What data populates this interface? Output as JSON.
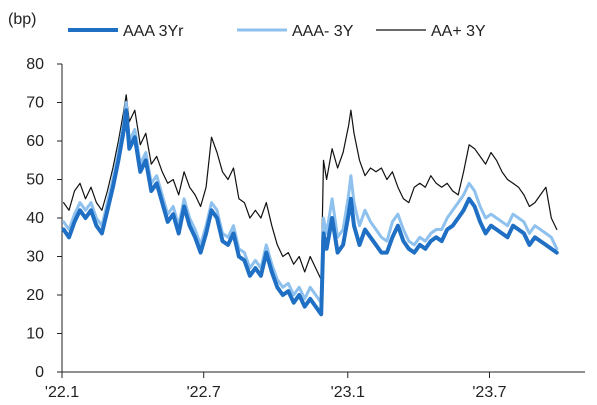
{
  "chart_data": {
    "type": "line",
    "unit_label": "(bp)",
    "xlabel": "",
    "ylabel": "",
    "ylim": [
      0,
      80
    ],
    "y_ticks": [
      0,
      10,
      20,
      30,
      40,
      50,
      60,
      70,
      80
    ],
    "x_ticks": [
      "'22.1",
      "'22.7",
      "'23.1",
      "'23.7"
    ],
    "grid": false,
    "legend_position": "top",
    "series": [
      {
        "name": "AAA 3Yr",
        "color": "#1f6fc5",
        "style": "thick",
        "points": [
          [
            "2022-01-03",
            37
          ],
          [
            "2022-01-10",
            35
          ],
          [
            "2022-01-17",
            39
          ],
          [
            "2022-01-24",
            42
          ],
          [
            "2022-01-31",
            40
          ],
          [
            "2022-02-07",
            42
          ],
          [
            "2022-02-14",
            38
          ],
          [
            "2022-02-21",
            36
          ],
          [
            "2022-02-28",
            42
          ],
          [
            "2022-03-07",
            48
          ],
          [
            "2022-03-14",
            55
          ],
          [
            "2022-03-21",
            63
          ],
          [
            "2022-03-24",
            68
          ],
          [
            "2022-03-28",
            58
          ],
          [
            "2022-04-04",
            61
          ],
          [
            "2022-04-11",
            52
          ],
          [
            "2022-04-18",
            55
          ],
          [
            "2022-04-25",
            47
          ],
          [
            "2022-05-02",
            49
          ],
          [
            "2022-05-09",
            44
          ],
          [
            "2022-05-16",
            39
          ],
          [
            "2022-05-23",
            41
          ],
          [
            "2022-05-30",
            36
          ],
          [
            "2022-06-06",
            43
          ],
          [
            "2022-06-13",
            38
          ],
          [
            "2022-06-20",
            35
          ],
          [
            "2022-06-27",
            31
          ],
          [
            "2022-07-04",
            36
          ],
          [
            "2022-07-11",
            42
          ],
          [
            "2022-07-18",
            40
          ],
          [
            "2022-07-25",
            34
          ],
          [
            "2022-08-01",
            33
          ],
          [
            "2022-08-08",
            36
          ],
          [
            "2022-08-15",
            30
          ],
          [
            "2022-08-22",
            29
          ],
          [
            "2022-08-29",
            25
          ],
          [
            "2022-09-05",
            27
          ],
          [
            "2022-09-12",
            25
          ],
          [
            "2022-09-19",
            31
          ],
          [
            "2022-09-26",
            26
          ],
          [
            "2022-10-03",
            22
          ],
          [
            "2022-10-10",
            20
          ],
          [
            "2022-10-17",
            21
          ],
          [
            "2022-10-24",
            18
          ],
          [
            "2022-10-31",
            20
          ],
          [
            "2022-11-07",
            17
          ],
          [
            "2022-11-14",
            19
          ],
          [
            "2022-11-21",
            17
          ],
          [
            "2022-11-28",
            15
          ],
          [
            "2022-12-01",
            36
          ],
          [
            "2022-12-05",
            32
          ],
          [
            "2022-12-12",
            40
          ],
          [
            "2022-12-19",
            31
          ],
          [
            "2022-12-26",
            33
          ],
          [
            "2023-01-02",
            41
          ],
          [
            "2023-01-05",
            45
          ],
          [
            "2023-01-09",
            38
          ],
          [
            "2023-01-16",
            33
          ],
          [
            "2023-01-23",
            37
          ],
          [
            "2023-01-30",
            35
          ],
          [
            "2023-02-06",
            33
          ],
          [
            "2023-02-13",
            31
          ],
          [
            "2023-02-20",
            31
          ],
          [
            "2023-02-27",
            35
          ],
          [
            "2023-03-06",
            38
          ],
          [
            "2023-03-13",
            34
          ],
          [
            "2023-03-20",
            32
          ],
          [
            "2023-03-27",
            31
          ],
          [
            "2023-04-03",
            33
          ],
          [
            "2023-04-10",
            32
          ],
          [
            "2023-04-17",
            34
          ],
          [
            "2023-04-24",
            35
          ],
          [
            "2023-05-01",
            34
          ],
          [
            "2023-05-08",
            37
          ],
          [
            "2023-05-15",
            38
          ],
          [
            "2023-05-22",
            40
          ],
          [
            "2023-05-29",
            42
          ],
          [
            "2023-06-05",
            45
          ],
          [
            "2023-06-12",
            43
          ],
          [
            "2023-06-19",
            39
          ],
          [
            "2023-06-26",
            36
          ],
          [
            "2023-07-03",
            38
          ],
          [
            "2023-07-10",
            37
          ],
          [
            "2023-07-17",
            36
          ],
          [
            "2023-07-24",
            35
          ],
          [
            "2023-07-31",
            38
          ],
          [
            "2023-08-07",
            37
          ],
          [
            "2023-08-14",
            36
          ],
          [
            "2023-08-21",
            33
          ],
          [
            "2023-08-28",
            35
          ],
          [
            "2023-09-04",
            34
          ],
          [
            "2023-09-11",
            33
          ],
          [
            "2023-09-18",
            32
          ],
          [
            "2023-09-25",
            31
          ]
        ]
      },
      {
        "name": "AAA- 3Y",
        "color": "#8fc1ee",
        "style": "medium",
        "points": [
          [
            "2022-01-03",
            39
          ],
          [
            "2022-01-10",
            37
          ],
          [
            "2022-01-17",
            41
          ],
          [
            "2022-01-24",
            44
          ],
          [
            "2022-01-31",
            42
          ],
          [
            "2022-02-07",
            44
          ],
          [
            "2022-02-14",
            40
          ],
          [
            "2022-02-21",
            38
          ],
          [
            "2022-02-28",
            44
          ],
          [
            "2022-03-07",
            50
          ],
          [
            "2022-03-14",
            57
          ],
          [
            "2022-03-21",
            65
          ],
          [
            "2022-03-24",
            70
          ],
          [
            "2022-03-28",
            60
          ],
          [
            "2022-04-04",
            63
          ],
          [
            "2022-04-11",
            54
          ],
          [
            "2022-04-18",
            57
          ],
          [
            "2022-04-25",
            49
          ],
          [
            "2022-05-02",
            51
          ],
          [
            "2022-05-09",
            46
          ],
          [
            "2022-05-16",
            41
          ],
          [
            "2022-05-23",
            43
          ],
          [
            "2022-05-30",
            38
          ],
          [
            "2022-06-06",
            45
          ],
          [
            "2022-06-13",
            40
          ],
          [
            "2022-06-20",
            37
          ],
          [
            "2022-06-27",
            33
          ],
          [
            "2022-07-04",
            38
          ],
          [
            "2022-07-11",
            44
          ],
          [
            "2022-07-18",
            42
          ],
          [
            "2022-07-25",
            36
          ],
          [
            "2022-08-01",
            35
          ],
          [
            "2022-08-08",
            38
          ],
          [
            "2022-08-15",
            32
          ],
          [
            "2022-08-22",
            31
          ],
          [
            "2022-08-29",
            27
          ],
          [
            "2022-09-05",
            29
          ],
          [
            "2022-09-12",
            27
          ],
          [
            "2022-09-19",
            33
          ],
          [
            "2022-09-26",
            28
          ],
          [
            "2022-10-03",
            24
          ],
          [
            "2022-10-10",
            22
          ],
          [
            "2022-10-17",
            23
          ],
          [
            "2022-10-24",
            20
          ],
          [
            "2022-10-31",
            22
          ],
          [
            "2022-11-07",
            19
          ],
          [
            "2022-11-14",
            22
          ],
          [
            "2022-11-21",
            20
          ],
          [
            "2022-11-28",
            18
          ],
          [
            "2022-12-01",
            40
          ],
          [
            "2022-12-05",
            36
          ],
          [
            "2022-12-12",
            45
          ],
          [
            "2022-12-19",
            35
          ],
          [
            "2022-12-26",
            37
          ],
          [
            "2023-01-02",
            46
          ],
          [
            "2023-01-05",
            51
          ],
          [
            "2023-01-09",
            44
          ],
          [
            "2023-01-16",
            38
          ],
          [
            "2023-01-23",
            42
          ],
          [
            "2023-01-30",
            39
          ],
          [
            "2023-02-06",
            37
          ],
          [
            "2023-02-13",
            35
          ],
          [
            "2023-02-20",
            34
          ],
          [
            "2023-02-27",
            39
          ],
          [
            "2023-03-06",
            41
          ],
          [
            "2023-03-13",
            37
          ],
          [
            "2023-03-20",
            34
          ],
          [
            "2023-03-27",
            33
          ],
          [
            "2023-04-03",
            35
          ],
          [
            "2023-04-10",
            34
          ],
          [
            "2023-04-17",
            36
          ],
          [
            "2023-04-24",
            37
          ],
          [
            "2023-05-01",
            37
          ],
          [
            "2023-05-08",
            40
          ],
          [
            "2023-05-15",
            42
          ],
          [
            "2023-05-22",
            44
          ],
          [
            "2023-05-29",
            46
          ],
          [
            "2023-06-05",
            49
          ],
          [
            "2023-06-12",
            47
          ],
          [
            "2023-06-19",
            43
          ],
          [
            "2023-06-26",
            40
          ],
          [
            "2023-07-03",
            41
          ],
          [
            "2023-07-10",
            40
          ],
          [
            "2023-07-17",
            39
          ],
          [
            "2023-07-24",
            38
          ],
          [
            "2023-07-31",
            41
          ],
          [
            "2023-08-07",
            40
          ],
          [
            "2023-08-14",
            39
          ],
          [
            "2023-08-21",
            36
          ],
          [
            "2023-08-28",
            38
          ],
          [
            "2023-09-04",
            37
          ],
          [
            "2023-09-11",
            36
          ],
          [
            "2023-09-18",
            35
          ],
          [
            "2023-09-25",
            32
          ]
        ]
      },
      {
        "name": "AA+ 3Y",
        "color": "#111111",
        "style": "thin",
        "points": [
          [
            "2022-01-03",
            44
          ],
          [
            "2022-01-10",
            42
          ],
          [
            "2022-01-17",
            47
          ],
          [
            "2022-01-24",
            49
          ],
          [
            "2022-01-31",
            45
          ],
          [
            "2022-02-07",
            48
          ],
          [
            "2022-02-14",
            44
          ],
          [
            "2022-02-21",
            42
          ],
          [
            "2022-02-28",
            47
          ],
          [
            "2022-03-07",
            53
          ],
          [
            "2022-03-14",
            60
          ],
          [
            "2022-03-21",
            68
          ],
          [
            "2022-03-24",
            72
          ],
          [
            "2022-03-28",
            65
          ],
          [
            "2022-04-04",
            68
          ],
          [
            "2022-04-11",
            59
          ],
          [
            "2022-04-18",
            62
          ],
          [
            "2022-04-25",
            54
          ],
          [
            "2022-05-02",
            56
          ],
          [
            "2022-05-09",
            52
          ],
          [
            "2022-05-16",
            49
          ],
          [
            "2022-05-23",
            50
          ],
          [
            "2022-05-30",
            46
          ],
          [
            "2022-06-06",
            52
          ],
          [
            "2022-06-13",
            48
          ],
          [
            "2022-06-20",
            46
          ],
          [
            "2022-06-27",
            43
          ],
          [
            "2022-07-04",
            48
          ],
          [
            "2022-07-11",
            61
          ],
          [
            "2022-07-18",
            57
          ],
          [
            "2022-07-25",
            52
          ],
          [
            "2022-08-01",
            50
          ],
          [
            "2022-08-08",
            53
          ],
          [
            "2022-08-15",
            45
          ],
          [
            "2022-08-22",
            44
          ],
          [
            "2022-08-29",
            40
          ],
          [
            "2022-09-05",
            42
          ],
          [
            "2022-09-12",
            40
          ],
          [
            "2022-09-19",
            44
          ],
          [
            "2022-09-26",
            38
          ],
          [
            "2022-10-03",
            33
          ],
          [
            "2022-10-10",
            30
          ],
          [
            "2022-10-17",
            31
          ],
          [
            "2022-10-24",
            28
          ],
          [
            "2022-10-31",
            30
          ],
          [
            "2022-11-07",
            26
          ],
          [
            "2022-11-14",
            30
          ],
          [
            "2022-11-21",
            27
          ],
          [
            "2022-11-28",
            24
          ],
          [
            "2022-12-01",
            55
          ],
          [
            "2022-12-05",
            50
          ],
          [
            "2022-12-12",
            58
          ],
          [
            "2022-12-19",
            53
          ],
          [
            "2022-12-26",
            57
          ],
          [
            "2023-01-02",
            64
          ],
          [
            "2023-01-05",
            68
          ],
          [
            "2023-01-09",
            62
          ],
          [
            "2023-01-16",
            55
          ],
          [
            "2023-01-23",
            51
          ],
          [
            "2023-01-30",
            53
          ],
          [
            "2023-02-06",
            52
          ],
          [
            "2023-02-13",
            53
          ],
          [
            "2023-02-20",
            50
          ],
          [
            "2023-02-27",
            52
          ],
          [
            "2023-03-06",
            48
          ],
          [
            "2023-03-13",
            45
          ],
          [
            "2023-03-20",
            44
          ],
          [
            "2023-03-27",
            48
          ],
          [
            "2023-04-03",
            49
          ],
          [
            "2023-04-10",
            48
          ],
          [
            "2023-04-17",
            51
          ],
          [
            "2023-04-24",
            49
          ],
          [
            "2023-05-01",
            48
          ],
          [
            "2023-05-08",
            49
          ],
          [
            "2023-05-15",
            47
          ],
          [
            "2023-05-22",
            46
          ],
          [
            "2023-05-29",
            52
          ],
          [
            "2023-06-05",
            59
          ],
          [
            "2023-06-12",
            58
          ],
          [
            "2023-06-19",
            56
          ],
          [
            "2023-06-26",
            54
          ],
          [
            "2023-07-03",
            57
          ],
          [
            "2023-07-10",
            55
          ],
          [
            "2023-07-17",
            52
          ],
          [
            "2023-07-24",
            50
          ],
          [
            "2023-07-31",
            49
          ],
          [
            "2023-08-07",
            48
          ],
          [
            "2023-08-14",
            46
          ],
          [
            "2023-08-21",
            43
          ],
          [
            "2023-08-28",
            44
          ],
          [
            "2023-09-04",
            46
          ],
          [
            "2023-09-11",
            48
          ],
          [
            "2023-09-18",
            40
          ],
          [
            "2023-09-25",
            37
          ]
        ]
      }
    ]
  }
}
